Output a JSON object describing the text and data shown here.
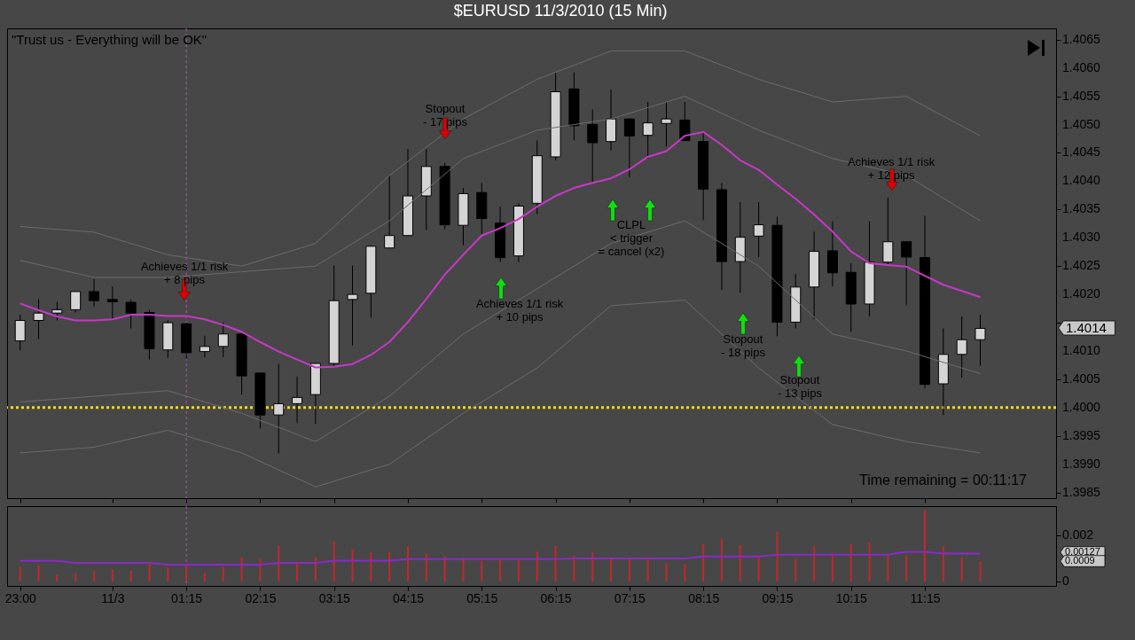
{
  "chart_data": [
    {
      "type": "candlestick",
      "title": "$EURUSD  11/3/2010 (15 Min)",
      "tick_labels": "y",
      "x": [
        "2010-11-02T23:00",
        "2010-11-02T23:15",
        "2010-11-02T23:30",
        "2010-11-02T23:45",
        "2010-11-03T00:00",
        "2010-11-03T00:15",
        "2010-11-03T00:30",
        "2010-11-03T00:45",
        "2010-11-03T01:00",
        "2010-11-03T01:15",
        "2010-11-03T01:30",
        "2010-11-03T01:45",
        "2010-11-03T02:00",
        "2010-11-03T02:15",
        "2010-11-03T02:30",
        "2010-11-03T02:45",
        "2010-11-03T03:00",
        "2010-11-03T03:15",
        "2010-11-03T03:30",
        "2010-11-03T03:45",
        "2010-11-03T04:00",
        "2010-11-03T04:15",
        "2010-11-03T04:30",
        "2010-11-03T04:45",
        "2010-11-03T05:00",
        "2010-11-03T05:15",
        "2010-11-03T05:30",
        "2010-11-03T05:45",
        "2010-11-03T06:00",
        "2010-11-03T06:15",
        "2010-11-03T06:30",
        "2010-11-03T06:45",
        "2010-11-03T07:00",
        "2010-11-03T07:15",
        "2010-11-03T07:30",
        "2010-11-03T07:45",
        "2010-11-03T08:00",
        "2010-11-03T08:15",
        "2010-11-03T08:30",
        "2010-11-03T08:45",
        "2010-11-03T09:00",
        "2010-11-03T09:15",
        "2010-11-03T09:30",
        "2010-11-03T09:45",
        "2010-11-03T10:00",
        "2010-11-03T10:15",
        "2010-11-03T10:30",
        "2010-11-03T10:45",
        "2010-11-03T11:00",
        "2010-11-03T11:15",
        "2010-11-03T11:30",
        "2010-11-03T11:45",
        "2010-11-03T12:00"
      ],
      "ohlc": [
        [
          1.40118,
          1.40164,
          1.40101,
          1.40154
        ],
        [
          1.40154,
          1.40192,
          1.40121,
          1.40167
        ],
        [
          1.40167,
          1.40187,
          1.40154,
          1.40173
        ],
        [
          1.40173,
          1.40206,
          1.40168,
          1.40205
        ],
        [
          1.40205,
          1.40227,
          1.40178,
          1.40189
        ],
        [
          1.40191,
          1.40214,
          1.40154,
          1.40187
        ],
        [
          1.40186,
          1.40191,
          1.4014,
          1.40167
        ],
        [
          1.40168,
          1.40173,
          1.40085,
          1.40104
        ],
        [
          1.40102,
          1.40154,
          1.40088,
          1.4015
        ],
        [
          1.40148,
          1.4015,
          1.40086,
          1.40097
        ],
        [
          1.40099,
          1.40127,
          1.40089,
          1.40108
        ],
        [
          1.40108,
          1.4015,
          1.40089,
          1.4013
        ],
        [
          1.4013,
          1.4013,
          1.40023,
          1.40056
        ],
        [
          1.40061,
          1.40061,
          1.39963,
          1.39987
        ],
        [
          1.39987,
          1.40077,
          1.39919,
          1.40007
        ],
        [
          1.40007,
          1.40055,
          1.39973,
          1.40018
        ],
        [
          1.40023,
          1.40078,
          1.39971,
          1.40078
        ],
        [
          1.40078,
          1.40251,
          1.40074,
          1.40189
        ],
        [
          1.40191,
          1.40251,
          1.4011,
          1.402
        ],
        [
          1.40202,
          1.40287,
          1.40159,
          1.40285
        ],
        [
          1.40282,
          1.4041,
          1.40282,
          1.40304
        ],
        [
          1.40304,
          1.40457,
          1.40303,
          1.40374
        ],
        [
          1.40374,
          1.40457,
          1.40314,
          1.40426
        ],
        [
          1.40426,
          1.40432,
          1.40315,
          1.40323
        ],
        [
          1.40322,
          1.40388,
          1.40287,
          1.40378
        ],
        [
          1.4038,
          1.40397,
          1.40307,
          1.40334
        ],
        [
          1.40326,
          1.40355,
          1.40257,
          1.40265
        ],
        [
          1.40268,
          1.40361,
          1.40257,
          1.40356
        ],
        [
          1.40361,
          1.40472,
          1.40342,
          1.40445
        ],
        [
          1.40443,
          1.40592,
          1.40437,
          1.40558
        ],
        [
          1.40563,
          1.40592,
          1.40472,
          1.40498
        ],
        [
          1.405,
          1.40527,
          1.40397,
          1.40468
        ],
        [
          1.4047,
          1.40562,
          1.40454,
          1.4051
        ],
        [
          1.4051,
          1.4051,
          1.40407,
          1.4048
        ],
        [
          1.40481,
          1.4054,
          1.4044,
          1.40503
        ],
        [
          1.40502,
          1.4054,
          1.40461,
          1.4051
        ],
        [
          1.40508,
          1.4054,
          1.40472,
          1.40472
        ],
        [
          1.4047,
          1.40487,
          1.40331,
          1.40386
        ],
        [
          1.40385,
          1.40397,
          1.40208,
          1.40258
        ],
        [
          1.40258,
          1.40363,
          1.40203,
          1.40301
        ],
        [
          1.40303,
          1.40363,
          1.40266,
          1.40323
        ],
        [
          1.40322,
          1.40337,
          1.40126,
          1.40151
        ],
        [
          1.40151,
          1.40236,
          1.4014,
          1.40213
        ],
        [
          1.40213,
          1.40311,
          1.40156,
          1.40276
        ],
        [
          1.40277,
          1.40329,
          1.40214,
          1.40238
        ],
        [
          1.40239,
          1.40255,
          1.40134,
          1.40183
        ],
        [
          1.40183,
          1.40329,
          1.40161,
          1.40257
        ],
        [
          1.40257,
          1.40371,
          1.40251,
          1.40293
        ],
        [
          1.40293,
          1.40293,
          1.40181,
          1.40266
        ],
        [
          1.40265,
          1.40339,
          1.40034,
          1.40041
        ],
        [
          1.40042,
          1.4014,
          1.39987,
          1.40094
        ],
        [
          1.40094,
          1.40161,
          1.40053,
          1.4012
        ],
        [
          1.4012,
          1.40164,
          1.40074,
          1.4014
        ]
      ],
      "series": [
        {
          "type": "line",
          "color": "#c838c8",
          "values": [
            1.40184,
            1.40172,
            1.40161,
            1.40154,
            1.40154,
            1.40156,
            1.40164,
            1.40164,
            1.40162,
            1.40162,
            1.40156,
            1.40146,
            1.40134,
            1.40116,
            1.40099,
            1.40085,
            1.40071,
            1.40072,
            1.40077,
            1.40093,
            1.40116,
            1.40151,
            1.40192,
            1.40235,
            1.4027,
            1.40304,
            1.40317,
            1.40333,
            1.40355,
            1.40374,
            1.40388,
            1.40397,
            1.40405,
            1.40421,
            1.40443,
            1.40453,
            1.4048,
            1.40487,
            1.40464,
            1.40437,
            1.4042,
            1.40394,
            1.40369,
            1.40341,
            1.40311,
            1.40276,
            1.40255,
            1.40252,
            1.40249,
            1.40233,
            1.40217,
            1.40206,
            1.40195
          ]
        },
        {
          "type": "line",
          "color": "#6c6c6c",
          "x": [
            "2010-11-02T23:00",
            "2010-11-03T00:00",
            "2010-11-03T01:00",
            "2010-11-03T02:00",
            "2010-11-03T03:00",
            "2010-11-03T04:00",
            "2010-11-03T05:00",
            "2010-11-03T06:00",
            "2010-11-03T07:00",
            "2010-11-03T08:00",
            "2010-11-03T09:00",
            "2010-11-03T10:00",
            "2010-11-03T11:00",
            "2010-11-03T12:00"
          ],
          "values": [
            1.4032,
            1.4031,
            1.4027,
            1.4025,
            1.4029,
            1.4041,
            1.4051,
            1.4058,
            1.4063,
            1.4063,
            1.4058,
            1.4054,
            1.4055,
            1.4048
          ]
        },
        {
          "type": "line",
          "color": "#6c6c6c",
          "x": [
            "2010-11-02T23:00",
            "2010-11-03T00:00",
            "2010-11-03T01:00",
            "2010-11-03T02:00",
            "2010-11-03T03:00",
            "2010-11-03T04:00",
            "2010-11-03T05:00",
            "2010-11-03T06:00",
            "2010-11-03T07:00",
            "2010-11-03T08:00",
            "2010-11-03T09:00",
            "2010-11-03T10:00",
            "2010-11-03T11:00",
            "2010-11-03T12:00"
          ],
          "values": [
            1.4026,
            1.4023,
            1.4023,
            1.4024,
            1.4025,
            1.4033,
            1.4044,
            1.4049,
            1.4051,
            1.4055,
            1.4049,
            1.4044,
            1.4041,
            1.4033
          ]
        },
        {
          "type": "line",
          "color": "#6c6c6c",
          "x": [
            "2010-11-02T23:00",
            "2010-11-03T00:00",
            "2010-11-03T01:00",
            "2010-11-03T02:00",
            "2010-11-03T03:00",
            "2010-11-03T04:00",
            "2010-11-03T05:00",
            "2010-11-03T06:00",
            "2010-11-03T07:00",
            "2010-11-03T08:00",
            "2010-11-03T09:00",
            "2010-11-03T10:00",
            "2010-11-03T11:00",
            "2010-11-03T12:00"
          ],
          "values": [
            1.4001,
            1.4002,
            1.4003,
            1.3999,
            1.3994,
            1.4002,
            1.4013,
            1.4021,
            1.4029,
            1.4033,
            1.4025,
            1.4013,
            1.401,
            1.4006
          ]
        },
        {
          "type": "line",
          "color": "#6c6c6c",
          "x": [
            "2010-11-02T23:00",
            "2010-11-03T00:00",
            "2010-11-03T01:00",
            "2010-11-03T02:00",
            "2010-11-03T03:00",
            "2010-11-03T04:00",
            "2010-11-03T05:00",
            "2010-11-03T06:00",
            "2010-11-03T07:00",
            "2010-11-03T08:00",
            "2010-11-03T09:00",
            "2010-11-03T10:00",
            "2010-11-03T11:00",
            "2010-11-03T12:00"
          ],
          "values": [
            1.3992,
            1.3993,
            1.3996,
            1.3992,
            1.3986,
            1.399,
            1.3999,
            1.4007,
            1.4018,
            1.4019,
            1.4007,
            1.3997,
            1.3994,
            1.3992
          ]
        }
      ],
      "xlim": [
        "2010-11-02T22:53",
        "2010-11-03T12:58"
      ],
      "xticks": [
        {
          "value": "2010-11-02T23:00",
          "label": null
        },
        {
          "value": "2010-11-03T00:15",
          "label": null
        },
        {
          "value": "2010-11-03T01:15",
          "label": null
        },
        {
          "value": "2010-11-03T02:15",
          "label": null
        },
        {
          "value": "2010-11-03T03:15",
          "label": null
        },
        {
          "value": "2010-11-03T04:15",
          "label": null
        },
        {
          "value": "2010-11-03T05:15",
          "label": null
        },
        {
          "value": "2010-11-03T06:15",
          "label": null
        },
        {
          "value": "2010-11-03T07:15",
          "label": null
        },
        {
          "value": "2010-11-03T08:15",
          "label": null
        },
        {
          "value": "2010-11-03T09:15",
          "label": null
        },
        {
          "value": "2010-11-03T10:15",
          "label": null
        },
        {
          "value": "2010-11-03T11:15",
          "label": null
        }
      ],
      "ylim": [
        1.3984,
        1.4067
      ],
      "yticks": [
        1.3985,
        {
          "value": 1.399,
          "label": "1.3990"
        },
        1.3995,
        {
          "value": 1.4,
          "label": "1.4000"
        },
        1.4005,
        {
          "value": 1.401,
          "label": "1.4010"
        },
        {
          "value": 1.4015,
          "label": null
        },
        {
          "value": 1.402,
          "label": "1.4020"
        },
        1.4025,
        {
          "value": 1.403,
          "label": "1.4030"
        },
        1.4035,
        {
          "value": 1.404,
          "label": "1.4040"
        },
        1.4045,
        {
          "value": 1.405,
          "label": "1.4050"
        },
        1.4055,
        {
          "value": 1.406,
          "label": "1.4060"
        },
        1.4065
      ],
      "ref_lines": [
        {
          "axis": "x",
          "value": "2010-11-03T01:15",
          "color": "#d040d0",
          "line_style": "dotted"
        },
        {
          "axis": "y",
          "value": 1.4,
          "color": "#f0e000",
          "line_style": "dotted"
        }
      ],
      "annotations": [
        "\"Trust us - Everything will be OK\"",
        "Achieves 1/1 risk\n+ 8 pips",
        "Stopout\n- 17 pips",
        "Achieves 1/1 risk\n+ 10 pips",
        "CLPL\n< trigger\n= cancel (x2)",
        "Stopout\n- 18 pips",
        "Stopout\n- 13 pips",
        "Achieves 1/1 risk\n+ 12 pips",
        "Time remaining = 00:11:17",
        "1.4014"
      ]
    },
    {
      "type": "bar",
      "x": [
        "2010-11-02T23:00",
        "2010-11-02T23:15",
        "2010-11-02T23:30",
        "2010-11-02T23:45",
        "2010-11-03T00:00",
        "2010-11-03T00:15",
        "2010-11-03T00:30",
        "2010-11-03T00:45",
        "2010-11-03T01:00",
        "2010-11-03T01:15",
        "2010-11-03T01:30",
        "2010-11-03T01:45",
        "2010-11-03T02:00",
        "2010-11-03T02:15",
        "2010-11-03T02:30",
        "2010-11-03T02:45",
        "2010-11-03T03:00",
        "2010-11-03T03:15",
        "2010-11-03T03:30",
        "2010-11-03T03:45",
        "2010-11-03T04:00",
        "2010-11-03T04:15",
        "2010-11-03T04:30",
        "2010-11-03T04:45",
        "2010-11-03T05:00",
        "2010-11-03T05:15",
        "2010-11-03T05:30",
        "2010-11-03T05:45",
        "2010-11-03T06:00",
        "2010-11-03T06:15",
        "2010-11-03T06:30",
        "2010-11-03T06:45",
        "2010-11-03T07:00",
        "2010-11-03T07:15",
        "2010-11-03T07:30",
        "2010-11-03T07:45",
        "2010-11-03T08:00",
        "2010-11-03T08:15",
        "2010-11-03T08:30",
        "2010-11-03T08:45",
        "2010-11-03T09:00",
        "2010-11-03T09:15",
        "2010-11-03T09:30",
        "2010-11-03T09:45",
        "2010-11-03T10:00",
        "2010-11-03T10:15",
        "2010-11-03T10:30",
        "2010-11-03T10:45",
        "2010-11-03T11:00",
        "2010-11-03T11:15",
        "2010-11-03T11:30",
        "2010-11-03T11:45",
        "2010-11-03T12:00"
      ],
      "series": [
        {
          "type": "bar",
          "color": "#c42828",
          "values": [
            0.00064,
            0.00069,
            0.00029,
            0.00034,
            0.00045,
            0.00053,
            0.00045,
            0.00085,
            0.00061,
            0.00072,
            0.00037,
            0.00061,
            0.00105,
            0.00098,
            0.00154,
            0.00077,
            0.00105,
            0.00173,
            0.00138,
            0.00125,
            0.00125,
            0.00152,
            0.0012,
            0.00109,
            0.00101,
            0.00088,
            0.00098,
            0.00098,
            0.00128,
            0.00154,
            0.00112,
            0.00128,
            0.00103,
            0.00103,
            0.00103,
            0.00079,
            0.00076,
            0.00161,
            0.00185,
            0.00158,
            0.00103,
            0.00215,
            0.00099,
            0.00152,
            0.00112,
            0.00161,
            0.00169,
            0.00112,
            0.00112,
            0.00308,
            0.00152,
            0.00103,
            0.00087
          ]
        },
        {
          "type": "line",
          "color": "#8a2ac8",
          "values": [
            0.00088,
            0.00088,
            0.00088,
            0.0008,
            0.0008,
            0.0008,
            0.0008,
            0.0008,
            0.00072,
            0.00072,
            0.00072,
            0.00072,
            0.00072,
            0.00072,
            0.0008,
            0.0008,
            0.0008,
            0.00089,
            0.00089,
            0.00089,
            0.00089,
            0.00096,
            0.00096,
            0.00096,
            0.00096,
            0.00096,
            0.00096,
            0.00096,
            0.00096,
            0.00096,
            0.00099,
            0.00099,
            0.00099,
            0.00099,
            0.00099,
            0.00099,
            0.00099,
            0.00107,
            0.00107,
            0.00107,
            0.00107,
            0.00115,
            0.00115,
            0.00115,
            0.00115,
            0.00115,
            0.00115,
            0.00115,
            0.00128,
            0.00128,
            0.0012,
            0.0012,
            0.0012
          ]
        }
      ],
      "xlim": [
        "2010-11-02T22:53",
        "2010-11-03T12:58"
      ],
      "xticks": [
        {
          "value": "2010-11-02T23:00",
          "label": "23:00"
        },
        {
          "value": "2010-11-03T00:15",
          "label": "11/3"
        },
        {
          "value": "2010-11-03T01:15",
          "label": "01:15"
        },
        {
          "value": "2010-11-03T02:15",
          "label": "02:15"
        },
        {
          "value": "2010-11-03T03:15",
          "label": "03:15"
        },
        {
          "value": "2010-11-03T04:15",
          "label": "04:15"
        },
        {
          "value": "2010-11-03T05:15",
          "label": "05:15"
        },
        {
          "value": "2010-11-03T06:15",
          "label": "06:15"
        },
        {
          "value": "2010-11-03T07:15",
          "label": "07:15"
        },
        {
          "value": "2010-11-03T08:15",
          "label": "08:15"
        },
        {
          "value": "2010-11-03T09:15",
          "label": "09:15"
        },
        {
          "value": "2010-11-03T10:15",
          "label": "10:15"
        },
        {
          "value": "2010-11-03T11:15",
          "label": "11:15"
        }
      ],
      "ylim": [
        -0.0002,
        0.00325
      ],
      "yticks": [
        0,
        0.002
      ],
      "ref_lines": [
        {
          "axis": "x",
          "value": "2010-11-03T01:15",
          "color": "#d040d0",
          "line_style": "dotted"
        }
      ],
      "annotations": [
        "0.00127",
        "0.0009"
      ]
    }
  ]
}
